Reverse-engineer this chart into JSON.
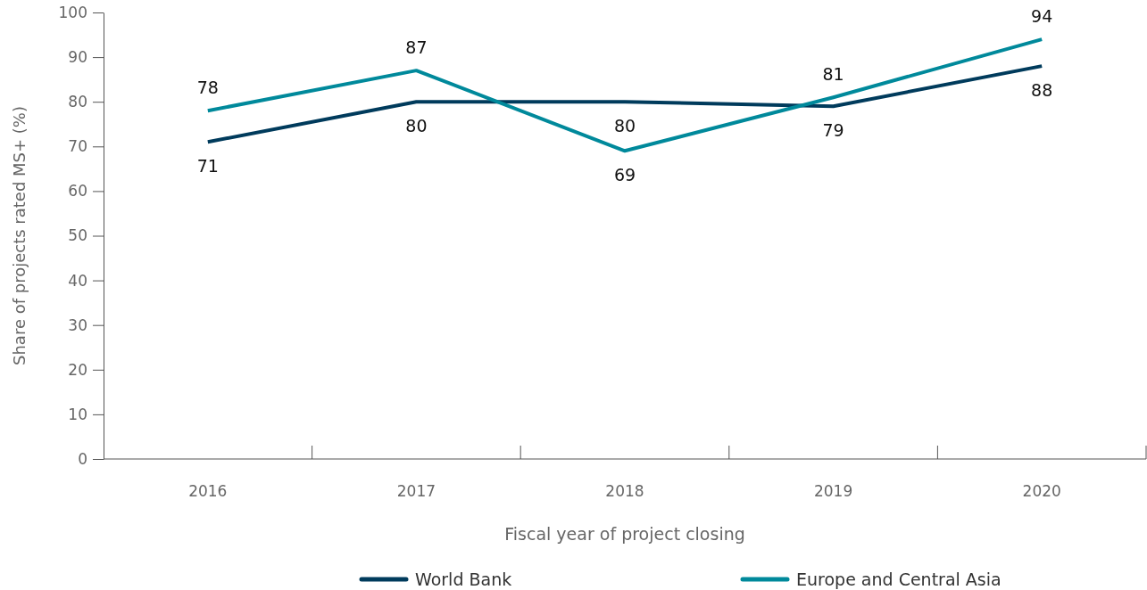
{
  "chart_data": {
    "type": "line",
    "xlabel": "Fiscal year of project closing",
    "ylabel": "Share of projects rated MS+ (%)",
    "categories": [
      "2016",
      "2017",
      "2018",
      "2019",
      "2020"
    ],
    "series": [
      {
        "name": "World Bank",
        "color": "#003b5c",
        "values": [
          71,
          80,
          80,
          79,
          88
        ]
      },
      {
        "name": "Europe and Central Asia",
        "color": "#00899b",
        "values": [
          78,
          87,
          69,
          81,
          94
        ]
      }
    ],
    "ylim": [
      0,
      100
    ],
    "yticks": [
      0,
      10,
      20,
      30,
      40,
      50,
      60,
      70,
      80,
      90,
      100
    ],
    "grid": false,
    "legend": "bottom",
    "data_labels": true,
    "marker": "none",
    "line_style": "solid"
  }
}
